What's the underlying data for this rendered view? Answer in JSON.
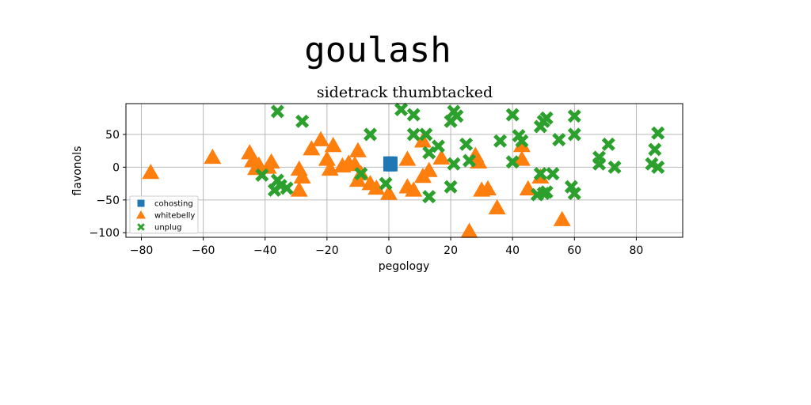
{
  "figure": {
    "title": "goulash"
  },
  "chart_data": {
    "type": "scatter",
    "title": "sidetrack thumbtacked",
    "xlabel": "pegology",
    "ylabel": "flavonols",
    "xlim": [
      -85,
      95
    ],
    "ylim": [
      -107,
      97
    ],
    "xticks": [
      -80,
      -60,
      -40,
      -20,
      0,
      20,
      40,
      60,
      80
    ],
    "yticks": [
      -100,
      -50,
      0,
      50
    ],
    "grid": true,
    "legend": {
      "placement": "lower-left"
    },
    "series": [
      {
        "name": "cohosting",
        "marker": "square",
        "color": "#1f77b4",
        "points": [
          [
            0,
            5
          ],
          [
            1,
            5
          ],
          [
            0,
            8
          ],
          [
            1,
            8
          ],
          [
            0,
            2
          ],
          [
            1,
            2
          ]
        ]
      },
      {
        "name": "whitebelly",
        "marker": "triangle",
        "color": "#ff7f0e",
        "points": [
          [
            -77,
            -8
          ],
          [
            -57,
            15
          ],
          [
            -45,
            22
          ],
          [
            -44,
            10
          ],
          [
            -43,
            -2
          ],
          [
            -42,
            3
          ],
          [
            -39,
            0
          ],
          [
            -38,
            8
          ],
          [
            -29,
            -3
          ],
          [
            -28,
            -15
          ],
          [
            -29,
            -35
          ],
          [
            -25,
            28
          ],
          [
            -22,
            42
          ],
          [
            -20,
            12
          ],
          [
            -19,
            -3
          ],
          [
            -18,
            33
          ],
          [
            -15,
            2
          ],
          [
            -13,
            6
          ],
          [
            -11,
            4
          ],
          [
            -10,
            25
          ],
          [
            -10,
            -20
          ],
          [
            -9,
            -10
          ],
          [
            -6,
            -25
          ],
          [
            -4,
            -32
          ],
          [
            0,
            -40
          ],
          [
            6,
            12
          ],
          [
            6,
            -30
          ],
          [
            8,
            -35
          ],
          [
            11,
            40
          ],
          [
            11,
            -14
          ],
          [
            13,
            -5
          ],
          [
            17,
            14
          ],
          [
            26,
            -98
          ],
          [
            28,
            18
          ],
          [
            29,
            8
          ],
          [
            30,
            -35
          ],
          [
            32,
            -33
          ],
          [
            35,
            -62
          ],
          [
            43,
            33
          ],
          [
            43,
            12
          ],
          [
            45,
            -33
          ],
          [
            49,
            -15
          ],
          [
            56,
            -80
          ]
        ]
      },
      {
        "name": "unplug",
        "marker": "x",
        "color": "#2ca02c",
        "points": [
          [
            -36,
            85
          ],
          [
            -28,
            70
          ],
          [
            -41,
            -12
          ],
          [
            -37,
            -35
          ],
          [
            -36,
            -20
          ],
          [
            -35,
            -28
          ],
          [
            -33,
            -32
          ],
          [
            -9,
            -10
          ],
          [
            -6,
            50
          ],
          [
            -1,
            -25
          ],
          [
            4,
            88
          ],
          [
            8,
            80
          ],
          [
            8,
            50
          ],
          [
            12,
            50
          ],
          [
            13,
            22
          ],
          [
            13,
            -45
          ],
          [
            16,
            32
          ],
          [
            20,
            70
          ],
          [
            21,
            85
          ],
          [
            22,
            78
          ],
          [
            21,
            5
          ],
          [
            20,
            -30
          ],
          [
            25,
            35
          ],
          [
            26,
            10
          ],
          [
            36,
            40
          ],
          [
            40,
            80
          ],
          [
            40,
            8
          ],
          [
            42,
            48
          ],
          [
            43,
            40
          ],
          [
            49,
            62
          ],
          [
            50,
            70
          ],
          [
            51,
            75
          ],
          [
            49,
            -10
          ],
          [
            48,
            -42
          ],
          [
            51,
            -38
          ],
          [
            50,
            -40
          ],
          [
            53,
            -10
          ],
          [
            55,
            42
          ],
          [
            60,
            78
          ],
          [
            60,
            50
          ],
          [
            59,
            -30
          ],
          [
            60,
            -40
          ],
          [
            68,
            15
          ],
          [
            68,
            5
          ],
          [
            71,
            35
          ],
          [
            73,
            0
          ],
          [
            85,
            5
          ],
          [
            86,
            27
          ],
          [
            87,
            52
          ],
          [
            87,
            0
          ]
        ]
      }
    ]
  }
}
